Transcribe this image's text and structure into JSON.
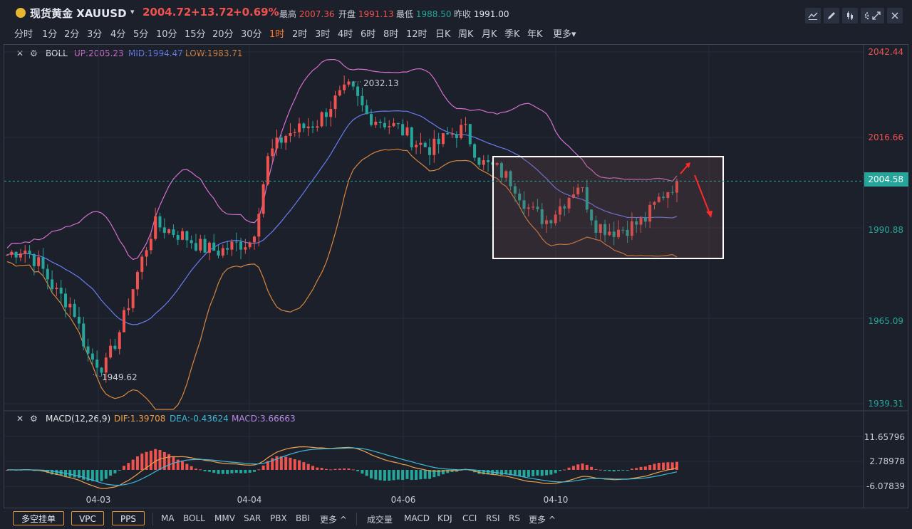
{
  "header": {
    "symbol": "现货黄金 XAUUSD",
    "price": "2004.72",
    "change": "+13.72",
    "change_pct": "+0.69%",
    "high_label": "最高",
    "high": "2007.36",
    "open_label": "开盘",
    "open": "1991.13",
    "low_label": "最低",
    "low": "1988.50",
    "prev_label": "昨收",
    "prev": "1991.00",
    "colors": {
      "up": "#ef5350",
      "down": "#26a69a"
    }
  },
  "toolbar_icons": [
    "indicator-icon",
    "draw-pencil-icon",
    "candle-style-icon",
    "gear-icon",
    "expand-icon",
    "close-icon"
  ],
  "periods": [
    "分时",
    "1分",
    "2分",
    "3分",
    "4分",
    "5分",
    "10分",
    "15分",
    "20分",
    "30分",
    "1时",
    "2时",
    "3时",
    "4时",
    "6时",
    "8时",
    "12时",
    "日K",
    "周K",
    "月K",
    "季K",
    "年K",
    "更多▾"
  ],
  "active_period": "1时",
  "boll": {
    "name": "BOLL",
    "up": "UP:2005.23",
    "mid": "MID:1994.47",
    "low": "LOW:1983.71",
    "colors": {
      "up": "#d66fd0",
      "mid": "#6b7cf0",
      "low": "#d9863f"
    }
  },
  "price_axis": [
    "2042.44",
    "2016.66",
    "2004.58",
    "1990.88",
    "1965.09",
    "1939.31"
  ],
  "current_price_tag": "2004.58",
  "annotations": {
    "high_mark": "2032.13",
    "low_mark": "1949.62"
  },
  "macd": {
    "name": "MACD(12,26,9)",
    "dif": "DIF:1.39708",
    "dea": "DEA:-0.43624",
    "macd": "MACD:3.66663",
    "axis": [
      "11.65796",
      "2.78978",
      "-6.07839"
    ]
  },
  "date_axis": [
    "04-03",
    "04-04",
    "04-06",
    "04-10"
  ],
  "bottom_bar": {
    "buttons": [
      "多空挂单",
      "VPC",
      "PPS"
    ],
    "main_indicators": [
      "MA",
      "BOLL",
      "MMV",
      "SAR",
      "PBX",
      "BBI",
      "更多 ^"
    ],
    "sub_indicators": [
      "成交量",
      "MACD",
      "KDJ",
      "CCI",
      "RSI",
      "RS",
      "更多 ^"
    ]
  },
  "chart_data": {
    "type": "candlestick",
    "x": [
      "04-03",
      "04-04",
      "04-06",
      "04-10"
    ],
    "ylim": [
      1939.31,
      2042.44
    ],
    "approx_close_path": [
      1983,
      1985,
      1980,
      1972,
      1968,
      1953,
      1950,
      1962,
      1978,
      1992,
      1990,
      1988,
      1985,
      1984,
      1986,
      1987,
      2012,
      2018,
      2020,
      2022,
      2028,
      2032,
      2024,
      2022,
      2020,
      2016,
      2014,
      2018,
      2020,
      2010,
      2008,
      2004,
      1996,
      1993,
      1998,
      2004,
      1992,
      1990,
      1991,
      1993,
      2000,
      2004.58
    ]
  }
}
